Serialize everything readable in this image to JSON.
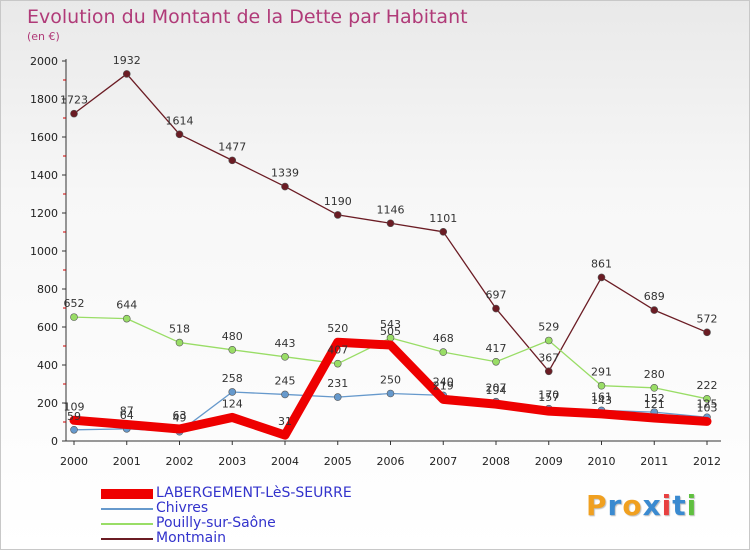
{
  "header": {
    "title": "Evolution du Montant de la Dette par Habitant",
    "unit": "(en €)"
  },
  "colors": {
    "title": "#b03a78",
    "legend_text": "#3333cc",
    "axis": "#333333"
  },
  "chart_data": {
    "type": "line",
    "title": "Evolution du Montant de la Dette par Habitant",
    "subtitle": "(en €)",
    "xlabel": "",
    "ylabel": "",
    "x": [
      "2000",
      "2001",
      "2002",
      "2003",
      "2004",
      "2005",
      "2006",
      "2007",
      "2008",
      "2009",
      "2010",
      "2011",
      "2012"
    ],
    "ylim": [
      0,
      2000
    ],
    "yticks": [
      "0",
      "200",
      "400",
      "600",
      "800",
      "1000",
      "1200",
      "1400",
      "1600",
      "1800",
      "2000"
    ],
    "grid": false,
    "legend": "bottom-left",
    "series": [
      {
        "name": "LABERGEMENT-LèS-SEURRE",
        "color": "#ee0000",
        "values": [
          109,
          87,
          63,
          124,
          31,
          520,
          505,
          219,
          194,
          157,
          143,
          121,
          103
        ],
        "labels": [
          "109",
          "87",
          "63",
          "124",
          "31",
          "520",
          "505",
          "219",
          "194",
          "157",
          "143",
          "121",
          "103"
        ]
      },
      {
        "name": "Chivres",
        "color": "#6699cc",
        "values": [
          59,
          64,
          49,
          258,
          245,
          231,
          250,
          240,
          207,
          170,
          161,
          152,
          125
        ],
        "labels": [
          "59",
          "64",
          "49",
          "258",
          "245",
          "231",
          "250",
          "240",
          "207",
          "170",
          "161",
          "152",
          "125"
        ]
      },
      {
        "name": "Pouilly-sur-Saône",
        "color": "#99dd66",
        "values": [
          652,
          644,
          518,
          480,
          443,
          407,
          543,
          468,
          417,
          529,
          291,
          280,
          222
        ],
        "labels": [
          "652",
          "644",
          "518",
          "480",
          "443",
          "407",
          "543",
          "468",
          "417",
          "529",
          "291",
          "280",
          "222"
        ]
      },
      {
        "name": "Montmain",
        "color": "#6b1c24",
        "values": [
          1723,
          1932,
          1614,
          1477,
          1339,
          1190,
          1146,
          1101,
          697,
          367,
          861,
          689,
          572
        ],
        "labels": [
          "1723",
          "1932",
          "1614",
          "1477",
          "1339",
          "1190",
          "1146",
          "1101",
          "697",
          "367",
          "861",
          "689",
          "572"
        ]
      }
    ]
  },
  "legend": {
    "items": [
      {
        "label": "LABERGEMENT-LèS-SEURRE",
        "color": "#ee0000",
        "thick": true
      },
      {
        "label": "Chivres",
        "color": "#6699cc",
        "thick": false
      },
      {
        "label": "Pouilly-sur-Saône",
        "color": "#99dd66",
        "thick": false
      },
      {
        "label": "Montmain",
        "color": "#6b1c24",
        "thick": false
      }
    ]
  },
  "logo": {
    "letters": [
      "P",
      "r",
      "o",
      "x",
      "i",
      "t",
      "i"
    ],
    "colors": [
      "#f0a020",
      "#3a8ad0",
      "#f0a020",
      "#3a8ad0",
      "#e84040",
      "#3a8ad0",
      "#60c040"
    ]
  }
}
